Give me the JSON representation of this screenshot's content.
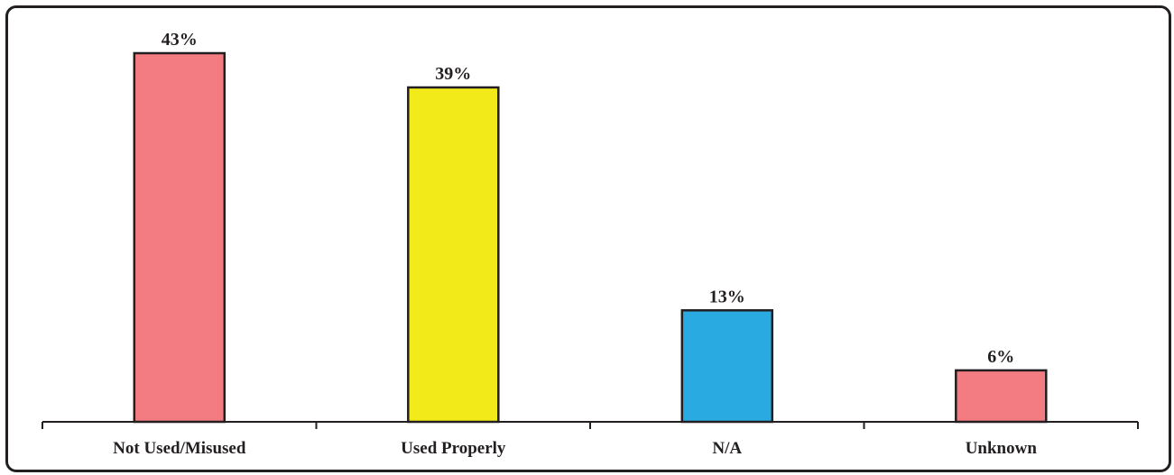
{
  "chart_data": {
    "type": "bar",
    "title": "",
    "xlabel": "",
    "ylabel": "",
    "categories": [
      "Not Used/Misused",
      "Used Properly",
      "N/A",
      "Unknown"
    ],
    "values": [
      43,
      39,
      13,
      6
    ],
    "value_labels": [
      "43%",
      "39%",
      "13%",
      "6%"
    ],
    "colors": [
      "#f27c82",
      "#f2eb19",
      "#29abe2",
      "#f27c82"
    ],
    "ylim": [
      0,
      45
    ],
    "grid": false,
    "legend": "none"
  }
}
